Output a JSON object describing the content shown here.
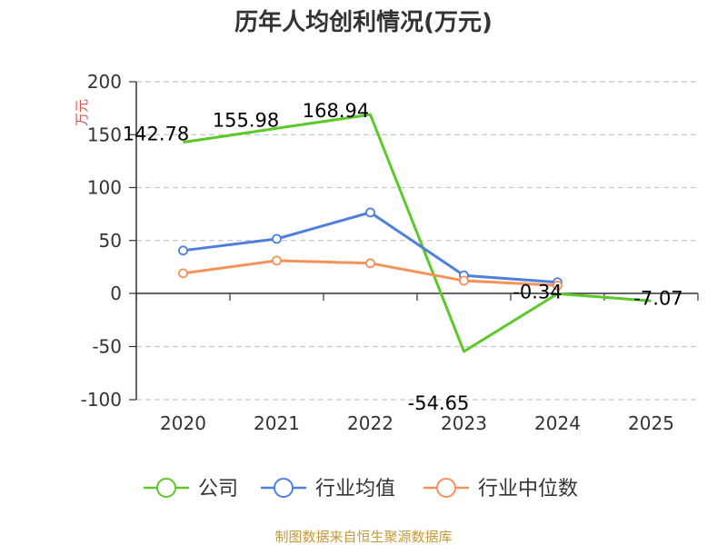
{
  "chart_data": {
    "type": "line",
    "title": "历年人均创利情况(万元)",
    "ylabel": "万元",
    "xlabel": "",
    "categories": [
      "2020",
      "2021",
      "2022",
      "2023",
      "2024",
      "2025"
    ],
    "ylim": [
      -100,
      200
    ],
    "yticks": [
      200,
      150,
      100,
      50,
      0,
      -50,
      -100
    ],
    "grid": true,
    "legend_position": "bottom",
    "series": [
      {
        "name": "公司",
        "values": [
          142.78,
          155.98,
          168.94,
          -54.65,
          -0.34,
          -7.07
        ],
        "labels": [
          "142.78",
          "155.98",
          "168.94",
          "-54.65",
          "-0.34",
          "-7.07"
        ],
        "color": "#5cc92b"
      },
      {
        "name": "行业均值",
        "values": [
          40.5,
          51.5,
          76.5,
          17.0,
          10.5,
          null
        ],
        "color": "#4f7fdc"
      },
      {
        "name": "行业中位数",
        "values": [
          19.0,
          31.0,
          28.5,
          12.0,
          7.5,
          null
        ],
        "color": "#f69258"
      }
    ]
  },
  "footer": {
    "source": "制图数据来自恒生聚源数据库"
  }
}
